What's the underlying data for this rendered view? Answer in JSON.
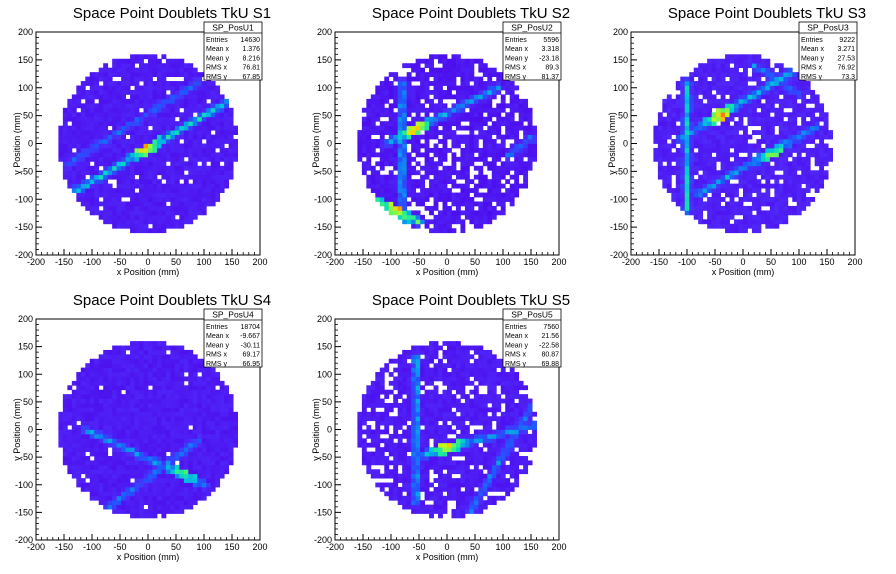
{
  "chart_data": [
    {
      "type": "heatmap",
      "title": "Space Point Doublets TkU S1",
      "xlabel": "x Position (mm)",
      "ylabel": "y Position (mm)",
      "xlim": [
        -200,
        200
      ],
      "ylim": [
        -200,
        200
      ],
      "xticks": [
        -200,
        -150,
        -100,
        -50,
        0,
        50,
        100,
        150,
        200
      ],
      "yticks": [
        -200,
        -150,
        -100,
        -50,
        0,
        50,
        100,
        150,
        200
      ],
      "region": "circle radius ~160 mm",
      "stats": {
        "name": "SP_PosU1",
        "rows": [
          {
            "label": "Entries",
            "value": "14630"
          },
          {
            "label": "Mean x",
            "value": "1.376"
          },
          {
            "label": "Mean y",
            "value": "8.216"
          },
          {
            "label": "RMS x",
            "value": "76.81"
          },
          {
            "label": "RMS y",
            "value": "67.85"
          }
        ]
      },
      "background_level": 0.12,
      "empty_fraction": 0.06,
      "tracks": [
        {
          "x1": -130,
          "y1": -85,
          "x2": 160,
          "y2": 85,
          "level": 0.55,
          "peak": 0.95,
          "peak_at": [
            -10,
            0
          ]
        },
        {
          "x1": -150,
          "y1": -40,
          "x2": 90,
          "y2": 110,
          "level": 0.35
        }
      ]
    },
    {
      "type": "heatmap",
      "title": "Space Point Doublets TkU S2",
      "xlabel": "x Position (mm)",
      "ylabel": "y Position (mm)",
      "xlim": [
        -200,
        200
      ],
      "ylim": [
        -200,
        200
      ],
      "xticks": [
        -200,
        -150,
        -100,
        -50,
        0,
        50,
        100,
        150,
        200
      ],
      "yticks": [
        -200,
        -150,
        -100,
        -50,
        0,
        50,
        100,
        150,
        200
      ],
      "region": "circle radius ~160 mm",
      "stats": {
        "name": "SP_PosU2",
        "rows": [
          {
            "label": "Entries",
            "value": "5596"
          },
          {
            "label": "Mean x",
            "value": "3.318"
          },
          {
            "label": "Mean y",
            "value": "-23.18"
          },
          {
            "label": "RMS x",
            "value": "89.3"
          },
          {
            "label": "RMS y",
            "value": "81.37"
          }
        ]
      },
      "background_level": 0.1,
      "empty_fraction": 0.2,
      "tracks": [
        {
          "x1": -80,
          "y1": -150,
          "x2": -80,
          "y2": 110,
          "level": 0.5
        },
        {
          "x1": -110,
          "y1": 0,
          "x2": 90,
          "y2": 100,
          "level": 0.45,
          "peak": 0.9,
          "peak_at": [
            -60,
            30
          ]
        },
        {
          "x1": -140,
          "y1": -95,
          "x2": -50,
          "y2": -140,
          "level": 0.7,
          "peak": 0.9,
          "peak_at": [
            -90,
            -115
          ]
        },
        {
          "x1": 110,
          "y1": -20,
          "x2": 150,
          "y2": 10,
          "level": 0.4
        }
      ]
    },
    {
      "type": "heatmap",
      "title": "Space Point Doublets TkU S3",
      "xlabel": "x Position (mm)",
      "ylabel": "y Position (mm)",
      "xlim": [
        -200,
        200
      ],
      "ylim": [
        -200,
        200
      ],
      "xticks": [
        -200,
        -150,
        -100,
        -50,
        0,
        50,
        100,
        150,
        200
      ],
      "yticks": [
        -200,
        -150,
        -100,
        -50,
        0,
        50,
        100,
        150,
        200
      ],
      "region": "circle radius ~160 mm",
      "stats": {
        "name": "SP_PosU3",
        "rows": [
          {
            "label": "Entries",
            "value": "9222"
          },
          {
            "label": "Mean x",
            "value": "3.271"
          },
          {
            "label": "Mean y",
            "value": "27.53"
          },
          {
            "label": "RMS x",
            "value": "76.92"
          },
          {
            "label": "RMS y",
            "value": "73.3"
          }
        ]
      },
      "background_level": 0.14,
      "empty_fraction": 0.14,
      "tracks": [
        {
          "x1": -100,
          "y1": 110,
          "x2": -100,
          "y2": -120,
          "level": 0.5
        },
        {
          "x1": -110,
          "y1": 10,
          "x2": 90,
          "y2": 130,
          "level": 0.5,
          "peak": 0.9,
          "peak_at": [
            -40,
            50
          ]
        },
        {
          "x1": -80,
          "y1": -90,
          "x2": 130,
          "y2": 30,
          "level": 0.45,
          "peak": 0.85,
          "peak_at": [
            60,
            -30
          ]
        },
        {
          "x1": 20,
          "y1": 140,
          "x2": 100,
          "y2": 90,
          "level": 0.4
        }
      ]
    },
    {
      "type": "heatmap",
      "title": "Space Point Doublets TkU S4",
      "xlabel": "x Position (mm)",
      "ylabel": "y Position (mm)",
      "xlim": [
        -200,
        200
      ],
      "ylim": [
        -200,
        200
      ],
      "xticks": [
        -200,
        -150,
        -100,
        -50,
        0,
        50,
        100,
        150,
        200
      ],
      "yticks": [
        -200,
        -150,
        -100,
        -50,
        0,
        50,
        100,
        150,
        200
      ],
      "region": "circle radius ~160 mm",
      "stats": {
        "name": "SP_PosU4",
        "rows": [
          {
            "label": "Entries",
            "value": "18704"
          },
          {
            "label": "Mean x",
            "value": "-9.667"
          },
          {
            "label": "Mean y",
            "value": "-30.11"
          },
          {
            "label": "RMS x",
            "value": "69.17"
          },
          {
            "label": "RMS y",
            "value": "66.95"
          }
        ]
      },
      "background_level": 0.12,
      "empty_fraction": 0.015,
      "tracks": [
        {
          "x1": -110,
          "y1": 0,
          "x2": 100,
          "y2": -100,
          "level": 0.45,
          "peak": 0.9,
          "peak_at": [
            70,
            -60
          ]
        },
        {
          "x1": -70,
          "y1": -140,
          "x2": 90,
          "y2": -20,
          "level": 0.4
        }
      ]
    },
    {
      "type": "heatmap",
      "title": "Space Point Doublets TkU S5",
      "xlabel": "x Position (mm)",
      "ylabel": "y Position (mm)",
      "xlim": [
        -200,
        200
      ],
      "ylim": [
        -200,
        200
      ],
      "xticks": [
        -200,
        -150,
        -100,
        -50,
        0,
        50,
        100,
        150,
        200
      ],
      "yticks": [
        -200,
        -150,
        -100,
        -50,
        0,
        50,
        100,
        150,
        200
      ],
      "region": "circle radius ~160 mm",
      "stats": {
        "name": "SP_PosU5",
        "rows": [
          {
            "label": "Entries",
            "value": "7560"
          },
          {
            "label": "Mean x",
            "value": "21.56"
          },
          {
            "label": "Mean y",
            "value": "-22.58"
          },
          {
            "label": "RMS x",
            "value": "80.87"
          },
          {
            "label": "RMS y",
            "value": "69.88"
          }
        ]
      },
      "background_level": 0.12,
      "empty_fraction": 0.15,
      "tracks": [
        {
          "x1": -55,
          "y1": 130,
          "x2": -55,
          "y2": -130,
          "level": 0.5
        },
        {
          "x1": -60,
          "y1": -50,
          "x2": 160,
          "y2": 10,
          "level": 0.45,
          "peak": 0.85,
          "peak_at": [
            0,
            -30
          ]
        },
        {
          "x1": 40,
          "y1": -150,
          "x2": 150,
          "y2": 40,
          "level": 0.4
        }
      ]
    }
  ]
}
